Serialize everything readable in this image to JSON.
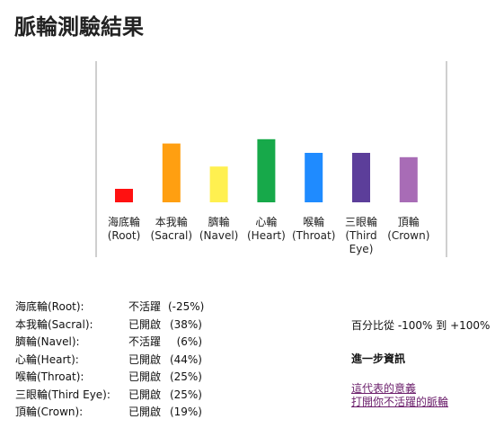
{
  "page": {
    "title": "脈輪測驗結果"
  },
  "chart_data": {
    "type": "bar",
    "title": "",
    "xlabel": "",
    "ylabel": "",
    "ylim": [
      -100,
      100
    ],
    "grid": false,
    "categories": [
      {
        "line1": "海底輪",
        "line2": "(Root)",
        "line3": ""
      },
      {
        "line1": "本我輪",
        "line2": "(Sacral)",
        "line3": ""
      },
      {
        "line1": "臍輪",
        "line2": "(Navel)",
        "line3": ""
      },
      {
        "line1": "心輪",
        "line2": "(Heart)",
        "line3": ""
      },
      {
        "line1": "喉輪",
        "line2": "(Throat)",
        "line3": ""
      },
      {
        "line1": "三眼輪",
        "line2": "(Third",
        "line3": "Eye)"
      },
      {
        "line1": "頂輪",
        "line2": "(Crown)",
        "line3": ""
      }
    ],
    "values": [
      -25,
      38,
      6,
      44,
      25,
      25,
      19
    ],
    "colors": [
      "#ff1111",
      "#ff9f11",
      "#fff050",
      "#17a94a",
      "#1f8bff",
      "#5c3e9a",
      "#a86cb6"
    ]
  },
  "results": [
    {
      "name": "海底輪(Root):",
      "status": "不活躍",
      "percent": "(-25%)"
    },
    {
      "name": "本我輪(Sacral):",
      "status": "已開啟",
      "percent": "(38%)"
    },
    {
      "name": "臍輪(Navel):",
      "status": "不活躍",
      "percent": "(6%)"
    },
    {
      "name": "心輪(Heart):",
      "status": "已開啟",
      "percent": "(44%)"
    },
    {
      "name": "喉輪(Throat):",
      "status": "已開啟",
      "percent": "(25%)"
    },
    {
      "name": "三眼輪(Third Eye):",
      "status": "已開啟",
      "percent": "(25%)"
    },
    {
      "name": "頂輪(Crown):",
      "status": "已開啟",
      "percent": "(19%)"
    }
  ],
  "scale_text": "百分比從 -100% 到 +100%",
  "info_heading": "進一步資訊",
  "links": [
    "這代表的意義",
    "打開你不活躍的脈輪"
  ]
}
